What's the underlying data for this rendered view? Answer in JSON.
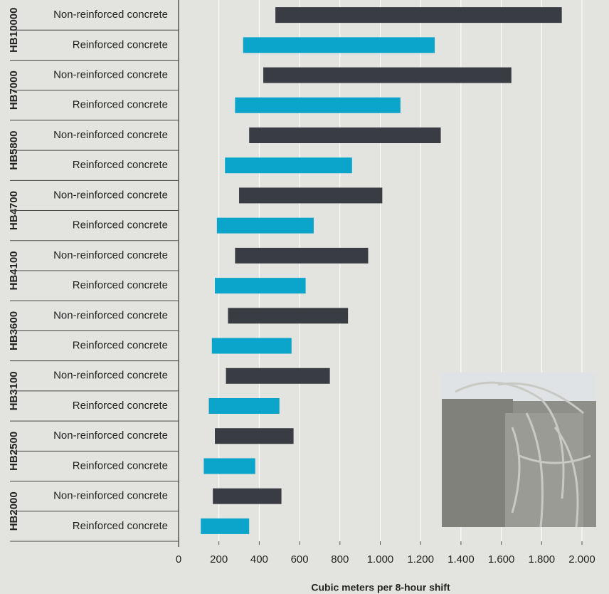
{
  "chart_data": {
    "type": "range-bar",
    "categories": [
      "HB10000",
      "HB7000",
      "HB5800",
      "HB4700",
      "HB4100",
      "HB3600",
      "HB3100",
      "HB2500",
      "HB2000"
    ],
    "series": [
      {
        "name": "Non-reinforced concrete",
        "color": "#393c43",
        "low": [
          480,
          420,
          350,
          300,
          280,
          245,
          235,
          180,
          170
        ],
        "high": [
          1900,
          1650,
          1300,
          1010,
          940,
          840,
          750,
          570,
          510
        ]
      },
      {
        "name": "Reinforced concrete",
        "color": "#0ba5cb",
        "low": [
          320,
          280,
          230,
          190,
          180,
          165,
          150,
          125,
          110
        ],
        "high": [
          1270,
          1100,
          860,
          670,
          630,
          560,
          500,
          380,
          350
        ]
      }
    ],
    "xlim": [
      0,
      2000
    ],
    "xticks": [
      0,
      200,
      400,
      600,
      800,
      {
        "value": 1000,
        "label": "1.000"
      },
      {
        "value": 1200,
        "label": "1.200"
      },
      {
        "value": 1400,
        "label": "1.400"
      },
      {
        "value": 1600,
        "label": "1.600"
      },
      {
        "value": 1800,
        "label": "1.800"
      },
      {
        "value": 2000,
        "label": "2.000"
      }
    ],
    "xlabel": "Cubic meters per 8-hour shift",
    "grid": true
  }
}
